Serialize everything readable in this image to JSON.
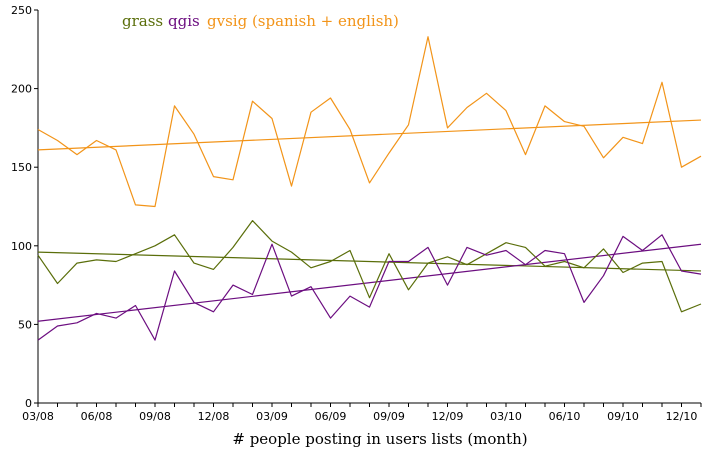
{
  "chart_data": {
    "type": "line",
    "xlabel": "# people posting in users lists (month)",
    "ylabel": "",
    "ylim": [
      0,
      250
    ],
    "yticks": [
      0,
      50,
      100,
      150,
      200,
      250
    ],
    "x_tick_labels": [
      "03/08",
      "06/08",
      "09/08",
      "12/08",
      "03/09",
      "06/09",
      "09/09",
      "12/09",
      "03/10",
      "06/10",
      "09/10",
      "12/10"
    ],
    "grid": false,
    "legend_position": "top",
    "trendlines": true,
    "series": [
      {
        "name": "grass",
        "color": "#5a6e0a",
        "values": [
          94,
          76,
          89,
          91,
          90,
          95,
          100,
          107,
          89,
          85,
          99,
          116,
          103,
          96,
          86,
          90,
          97,
          67,
          95,
          72,
          89,
          93,
          88,
          95,
          102,
          99,
          87,
          90,
          86,
          98,
          83,
          89,
          90,
          58,
          63
        ],
        "trend": [
          96,
          84
        ]
      },
      {
        "name": "qgis",
        "color": "#6c0e80",
        "values": [
          40,
          49,
          51,
          57,
          54,
          62,
          40,
          84,
          64,
          58,
          75,
          69,
          101,
          68,
          74,
          54,
          68,
          61,
          90,
          90,
          99,
          75,
          99,
          94,
          97,
          88,
          97,
          95,
          64,
          81,
          106,
          97,
          107,
          84,
          82
        ],
        "trend": [
          52,
          101
        ]
      },
      {
        "name": "gvsig (spanish + english)",
        "color": "#f29419",
        "values": [
          174,
          167,
          158,
          167,
          161,
          126,
          125,
          189,
          171,
          144,
          142,
          192,
          181,
          138,
          185,
          194,
          174,
          140,
          159,
          177,
          233,
          175,
          188,
          197,
          186,
          158,
          189,
          179,
          176,
          156,
          169,
          165,
          204,
          150,
          157
        ],
        "trend": [
          161,
          180
        ]
      }
    ]
  }
}
